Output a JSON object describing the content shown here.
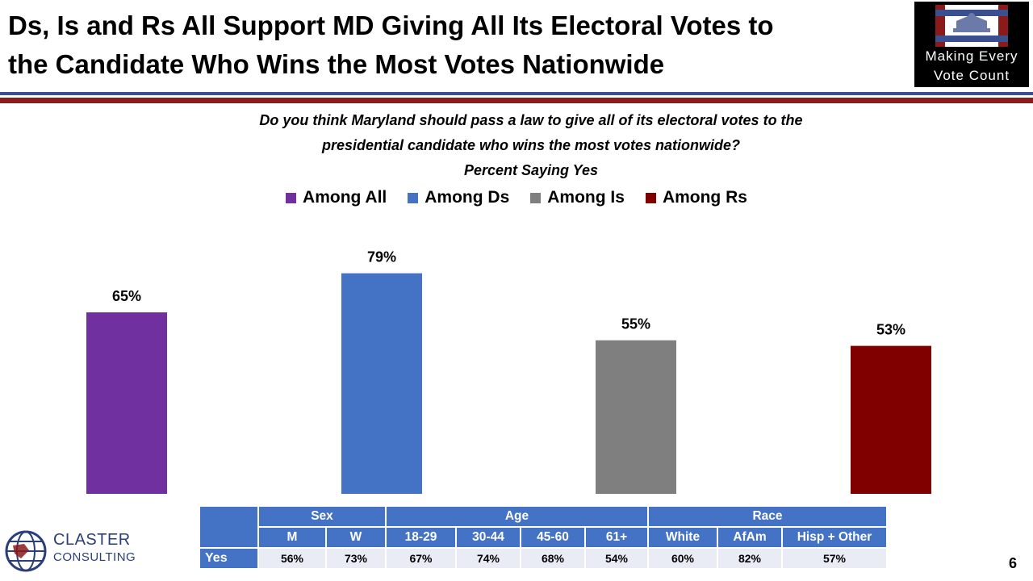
{
  "slide": {
    "title_line1": "Ds, Is and Rs All Support MD Giving All Its Electoral Votes to",
    "title_line2": "the Candidate Who Wins the Most Votes Nationwide",
    "question_line1": "Do you think Maryland should pass a law to give all of its electoral votes to the",
    "question_line2": "presidential candidate who wins the most votes nationwide?",
    "subtitle": "Percent Saying Yes",
    "page_number": "6"
  },
  "logo": {
    "line1": "Making Every",
    "line2": "Vote Count"
  },
  "claster": {
    "line1": "CLASTER",
    "line2": "CONSULTING"
  },
  "colors": {
    "rule_blue": "#3a4f8f",
    "rule_red": "#8b1a1a"
  },
  "chart_data": {
    "type": "bar",
    "categories": [
      "Among All",
      "Among Ds",
      "Among Is",
      "Among Rs"
    ],
    "values": [
      65,
      79,
      55,
      53
    ],
    "labels": [
      "65%",
      "79%",
      "55%",
      "53%"
    ],
    "colors": [
      "#7030a0",
      "#4472c4",
      "#7f7f7f",
      "#800000"
    ],
    "title": "Percent Saying Yes",
    "xlabel": "",
    "ylabel": "",
    "ylim": [
      0,
      100
    ],
    "grid": false,
    "legend": "top"
  },
  "demographics": {
    "row_label": "Yes",
    "groups": [
      {
        "name": "Sex",
        "columns": [
          {
            "label": "M",
            "value": "56%"
          },
          {
            "label": "W",
            "value": "73%"
          }
        ]
      },
      {
        "name": "Age",
        "columns": [
          {
            "label": "18-29",
            "value": "67%"
          },
          {
            "label": "30-44",
            "value": "74%"
          },
          {
            "label": "45-60",
            "value": "68%"
          },
          {
            "label": "61+",
            "value": "54%"
          }
        ]
      },
      {
        "name": "Race",
        "columns": [
          {
            "label": "White",
            "value": "60%"
          },
          {
            "label": "AfAm",
            "value": "82%"
          },
          {
            "label": "Hisp + Other",
            "value": "57%"
          }
        ]
      }
    ]
  }
}
